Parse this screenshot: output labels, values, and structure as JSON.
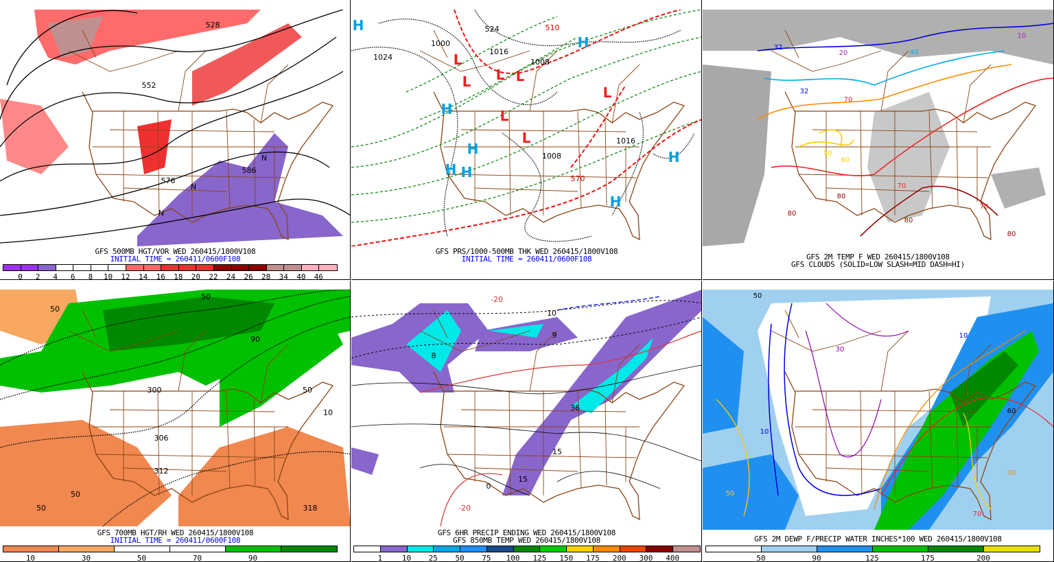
{
  "panels": [
    {
      "id": "p1",
      "caption1": "GFS 500MB HGT/VOR WED 260415/1800V108",
      "caption2": "INITIAL TIME = 260411/0600F108",
      "colorbar": {
        "colors": [
          "#9933ee",
          "#9933ee",
          "#8866cc",
          "#ffffff",
          "#ffffff",
          "#ffffff",
          "#ffffff",
          "#ff6a6a",
          "#ff6a6a",
          "#ee3030",
          "#ee3030",
          "#ee3030",
          "#8b0000",
          "#8b0000",
          "#8b0000",
          "#c09090",
          "#c09090",
          "#ffb0c0",
          "#ffb0c0"
        ],
        "labels": [
          "0",
          "2",
          "4",
          "6",
          "8",
          "10",
          "12",
          "14",
          "16",
          "18",
          "20",
          "22",
          "24",
          "26",
          "28",
          "34",
          "40",
          "46"
        ]
      },
      "map_labels": [
        "528",
        "552",
        "576",
        "586",
        "N",
        "N",
        "N"
      ]
    },
    {
      "id": "p2",
      "caption1": "GFS PRS/1000-500MB THK WED 260415/1800V108",
      "caption2": "INITIAL TIME = 260411/0600F108",
      "map_labels": [
        "H",
        "H",
        "H",
        "H",
        "H",
        "H",
        "H",
        "H",
        "L",
        "L",
        "L",
        "L",
        "L",
        "L",
        "L",
        "1024",
        "1016",
        "1008",
        "1016",
        "1000",
        "1008",
        "524",
        "570",
        "510"
      ]
    },
    {
      "id": "p3",
      "caption1": "GFS 2M TEMP F WED 260415/1800V108",
      "caption2": "GFS CLOUDS (SOLID=LOW SLASH=MID DASH=HI)",
      "map_labels": [
        "32",
        "20",
        "40",
        "32",
        "50",
        "60",
        "70",
        "80",
        "80",
        "70",
        "80",
        "70",
        "80",
        "10"
      ]
    },
    {
      "id": "p4",
      "caption1": "GFS 700MB HGT/RH WED 260415/1800V108",
      "caption2": "INITIAL TIME = 260411/0600F108",
      "colorbar": {
        "colors": [
          "#f08850",
          "#f8a860",
          "#ffffff",
          "#ffffff",
          "#00c000",
          "#008800"
        ],
        "labels": [
          "10",
          "30",
          "50",
          "70",
          "90"
        ]
      },
      "map_labels": [
        "50",
        "50",
        "300",
        "306",
        "312",
        "318",
        "50",
        "50",
        "90",
        "10",
        "50"
      ]
    },
    {
      "id": "p5",
      "caption1": "GFS 6HR PRECIP ENDING WED 260415/1800V108",
      "caption2": "GFS 850MB TEMP WED 260415/1800V108",
      "colorbar": {
        "colors": [
          "#ffffff",
          "#8866cc",
          "#00e8e8",
          "#00a8e8",
          "#2090ff",
          "#1a4a8a",
          "#008800",
          "#00cc00",
          "#ffd000",
          "#ff8800",
          "#ee4400",
          "#880000",
          "#c09090"
        ],
        "labels": [
          "1",
          "10",
          "25",
          "50",
          "75",
          "100",
          "125",
          "150",
          "175",
          "200",
          "300",
          "400"
        ]
      },
      "map_labels": [
        "36",
        "15",
        "9",
        "8",
        "-20",
        "0",
        "10",
        "15",
        "-20"
      ]
    },
    {
      "id": "p6",
      "caption1": "GFS 2M DEWP F/PRECIP WATER INCHES*100 WED 260415/1800V108",
      "colorbar": {
        "colors": [
          "#ffffff",
          "#a0d0f0",
          "#2090f0",
          "#00c000",
          "#008800",
          "#e8e000"
        ],
        "labels": [
          "50",
          "90",
          "125",
          "175",
          "200"
        ]
      },
      "map_labels": [
        "50",
        "30",
        "10",
        "60",
        "70",
        "30",
        "50",
        "10"
      ]
    }
  ],
  "colors": {
    "borders": "#8b4513",
    "contour": "#000000",
    "initial_time_text": "#0000ee",
    "high": "#00a0e0",
    "low": "#ee2020"
  }
}
